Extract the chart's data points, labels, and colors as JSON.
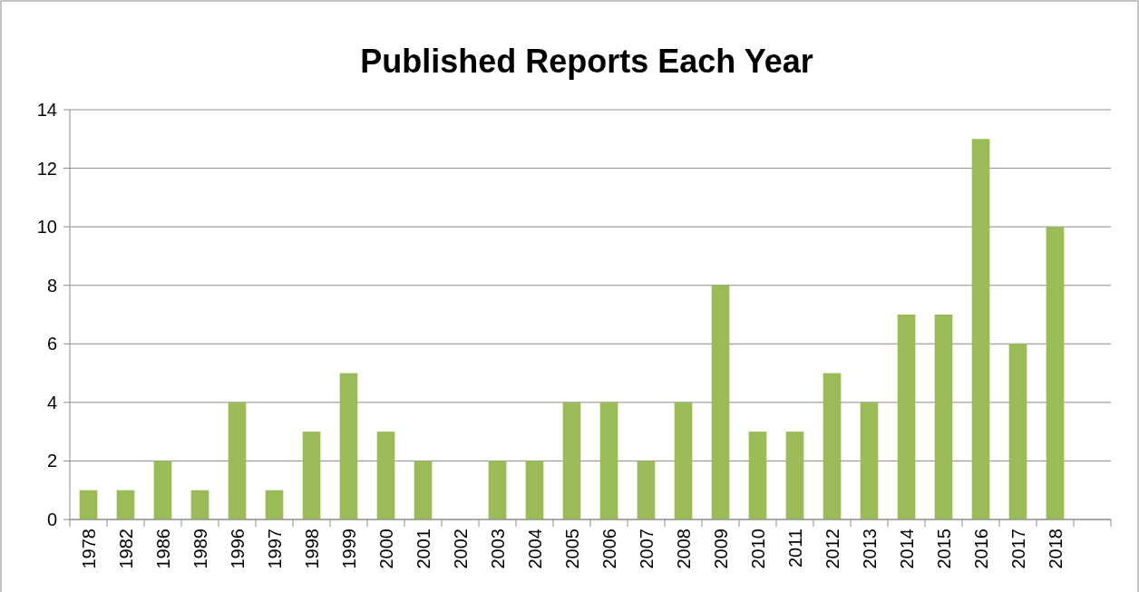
{
  "chart_data": {
    "type": "bar",
    "title": "Published Reports Each Year",
    "categories": [
      "1978",
      "1982",
      "1986",
      "1989",
      "1996",
      "1997",
      "1998",
      "1999",
      "2000",
      "2001",
      "2002",
      "2003",
      "2004",
      "2005",
      "2006",
      "2007",
      "2008",
      "2009",
      "2010",
      "2011",
      "2012",
      "2013",
      "2014",
      "2015",
      "2016",
      "2017",
      "2018",
      null
    ],
    "values": [
      1,
      1,
      2,
      1,
      4,
      1,
      3,
      5,
      3,
      2,
      0,
      2,
      2,
      4,
      4,
      2,
      4,
      8,
      3,
      3,
      5,
      4,
      7,
      7,
      13,
      6,
      10,
      null
    ],
    "color": "#9bbb59",
    "ylim": [
      0,
      14
    ],
    "yticks": [
      0,
      2,
      4,
      6,
      8,
      10,
      12,
      14
    ],
    "grid": "y"
  }
}
